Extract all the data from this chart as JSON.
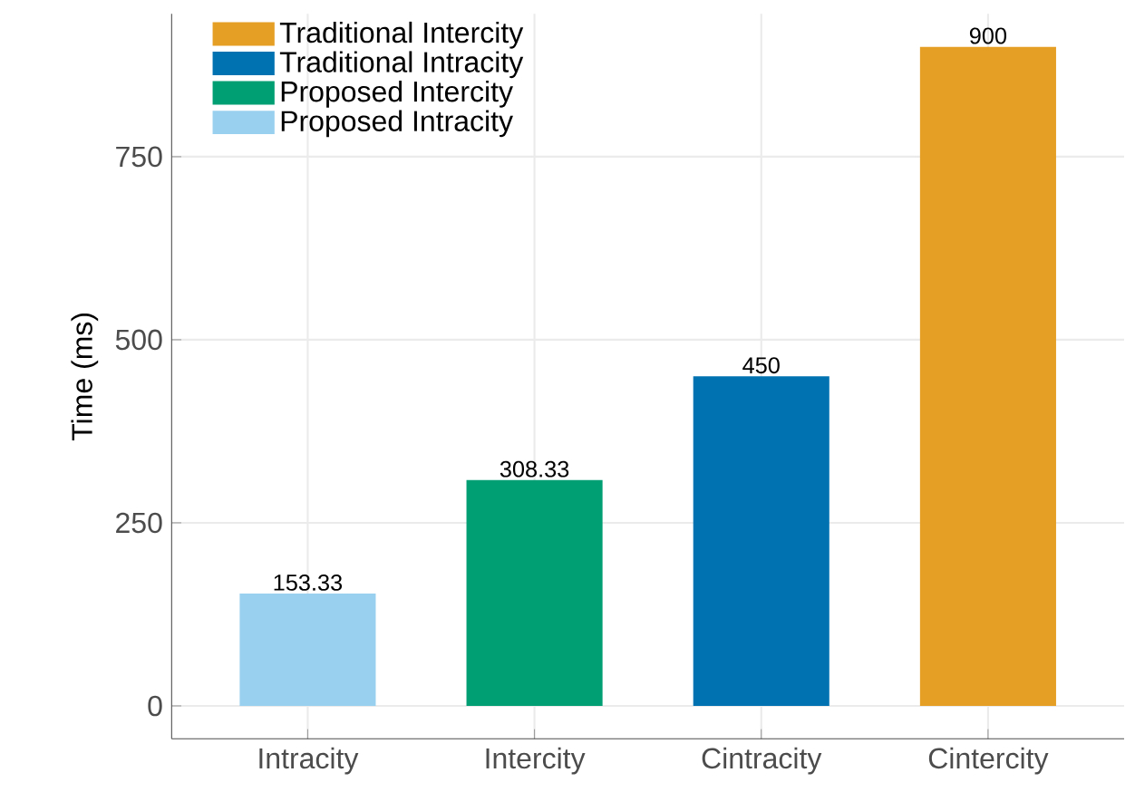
{
  "chart_data": {
    "type": "bar",
    "ylabel": "Time (ms)",
    "categories": [
      "Intracity",
      "Intercity",
      "Cintracity",
      "Cintercity"
    ],
    "series": [
      {
        "name": "Traditional Intercity",
        "color": "#e69f25",
        "values": [
          null,
          null,
          null,
          900
        ]
      },
      {
        "name": "Traditional Intracity",
        "color": "#0072b2",
        "values": [
          null,
          null,
          450,
          null
        ]
      },
      {
        "name": "Proposed Intercity",
        "color": "#009e73",
        "values": [
          null,
          308.33,
          null,
          null
        ]
      },
      {
        "name": "Proposed Intracity",
        "color": "#9ad0ef",
        "values": [
          153.33,
          null,
          null,
          null
        ]
      }
    ],
    "ylim": [
      -45,
      945
    ],
    "yticks": [
      0,
      250,
      500,
      750
    ],
    "grid": true,
    "legend": "top left",
    "data_labels": true
  }
}
